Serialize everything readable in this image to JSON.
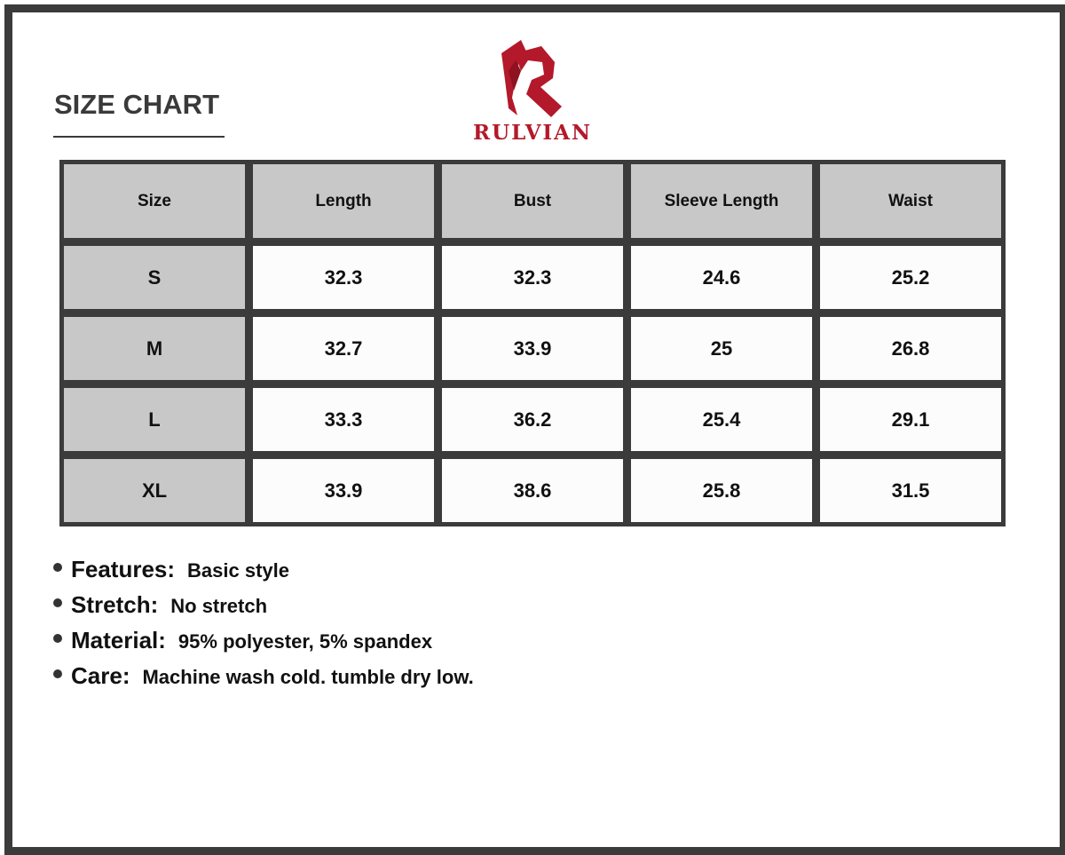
{
  "title": "SIZE CHART",
  "brand": {
    "name": "RULVIAN",
    "color": "#b3192a"
  },
  "table": {
    "headers": [
      "Size",
      "Length",
      "Bust",
      "Sleeve Length",
      "Waist"
    ],
    "rows": [
      [
        "S",
        "32.3",
        "32.3",
        "24.6",
        "25.2"
      ],
      [
        "M",
        "32.7",
        "33.9",
        "25",
        "26.8"
      ],
      [
        "L",
        "33.3",
        "36.2",
        "25.4",
        "29.1"
      ],
      [
        "XL",
        "33.9",
        "38.6",
        "25.8",
        "31.5"
      ]
    ]
  },
  "features": [
    {
      "label": "Features:",
      "value": "Basic style"
    },
    {
      "label": "Stretch:",
      "value": "No stretch"
    },
    {
      "label": "Material:",
      "value": "95% polyester, 5% spandex"
    },
    {
      "label": "Care:",
      "value": "Machine wash cold. tumble dry low."
    }
  ]
}
